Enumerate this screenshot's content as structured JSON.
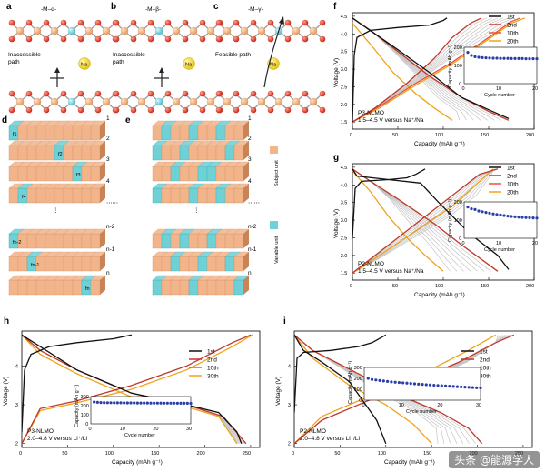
{
  "panels": {
    "a": {
      "letter": "a",
      "title": "-M–α-",
      "path_text": "Inaccessible\npath",
      "ion": "Na"
    },
    "b": {
      "letter": "b",
      "title": "-M–β-",
      "path_text": "Inaccessible\npath",
      "ion": "Na"
    },
    "c": {
      "letter": "c",
      "title": "-M–γ-",
      "path_text": "Feasible path",
      "ion": "Na"
    },
    "d": {
      "letter": "d",
      "row_labels": [
        "1",
        "2",
        "3",
        "4",
        "⋯⋯",
        "n-2",
        "n-1",
        "n"
      ],
      "f_labels": [
        "f1",
        "f2",
        "f3",
        "f4",
        "fn-2",
        "fn-1",
        "fn"
      ]
    },
    "e": {
      "letter": "e",
      "row_labels": [
        "1",
        "2",
        "3",
        "4",
        "⋯⋯",
        "n-2",
        "n-1",
        "n"
      ]
    },
    "legend_de": {
      "subject": "Subject unit",
      "variable": "Variable unit"
    }
  },
  "colors": {
    "first": "#111111",
    "second": "#c0392b",
    "tenth": "#e8543a",
    "twentieth": "#f0a21a",
    "subject": "#f2b48a",
    "variable": "#6fd0d6",
    "inset_marker": "#2a3ea8",
    "gray_curve": "#c4c4c4"
  },
  "chart_data": [
    {
      "panel": "f",
      "type": "line",
      "title": "",
      "label_line1": "P3-NLMO",
      "label_line2": "1.5–4.5 V versus Na⁺/Na",
      "xlabel": "Capacity (mAh g⁻¹)",
      "ylabel": "Voltage (V)",
      "xlim": [
        0,
        200
      ],
      "ylim": [
        1.3,
        4.6
      ],
      "xticks": [
        "0",
        "50",
        "100",
        "150",
        "200"
      ],
      "yticks": [
        "1.5",
        "2.0",
        "2.5",
        "3.0",
        "3.5",
        "4.0",
        "4.5"
      ],
      "legend": [
        "1st",
        "2nd",
        "10th",
        "20th"
      ],
      "series": [
        {
          "name": "1st charge",
          "x": [
            0,
            2,
            5,
            20,
            50,
            85,
            100,
            104
          ],
          "y": [
            1.5,
            3.4,
            3.9,
            4.1,
            4.18,
            4.25,
            4.38,
            4.45
          ]
        },
        {
          "name": "1st discharge",
          "x": [
            0,
            8,
            25,
            50,
            85,
            120,
            150,
            172
          ],
          "y": [
            4.45,
            4.3,
            4.0,
            3.55,
            2.9,
            2.2,
            1.85,
            1.6
          ]
        },
        {
          "name": "2nd charge",
          "x": [
            0,
            25,
            60,
            90,
            110,
            130,
            142
          ],
          "y": [
            1.5,
            1.9,
            2.6,
            3.3,
            3.9,
            4.3,
            4.45
          ]
        },
        {
          "name": "2nd discharge",
          "x": [
            0,
            20,
            50,
            85,
            120,
            150,
            172
          ],
          "y": [
            4.45,
            4.1,
            3.5,
            2.8,
            2.2,
            1.8,
            1.55
          ]
        },
        {
          "name": "10th charge",
          "x": [
            0,
            30,
            70,
            110,
            150,
            175,
            185
          ],
          "y": [
            1.5,
            1.95,
            2.6,
            3.2,
            3.9,
            4.35,
            4.45
          ]
        },
        {
          "name": "20th charge",
          "x": [
            0,
            30,
            70,
            110,
            150,
            175,
            190
          ],
          "y": [
            1.5,
            1.9,
            2.55,
            3.15,
            3.85,
            4.3,
            4.45
          ]
        },
        {
          "name": "20th discharge",
          "x": [
            0,
            20,
            45,
            70,
            90,
            110
          ],
          "y": [
            4.3,
            3.7,
            2.9,
            2.3,
            1.9,
            1.55
          ]
        }
      ],
      "inset": {
        "xlabel": "Cycle number",
        "ylabel": "Capacity (mAh g⁻¹)",
        "xlim": [
          0,
          20
        ],
        "ylim": [
          0,
          200
        ],
        "xticks": [
          "0",
          "10",
          "20"
        ],
        "yticks": [
          "0",
          "100",
          "200"
        ],
        "cycles": [
          1,
          2,
          3,
          4,
          5,
          6,
          7,
          8,
          9,
          10,
          11,
          12,
          13,
          14,
          15,
          16,
          17,
          18,
          19,
          20
        ],
        "capacity": [
          172,
          155,
          148,
          145,
          143,
          142,
          141,
          140,
          140,
          139,
          139,
          139,
          138,
          138,
          138,
          138,
          137,
          137,
          137,
          137
        ]
      }
    },
    {
      "panel": "g",
      "type": "line",
      "label_line1": "P2-NLMO",
      "label_line2": "1.5–4.5 V versus Na⁺/Na",
      "xlabel": "Capacity (mAh g⁻¹)",
      "ylabel": "Voltage (V)",
      "xlim": [
        0,
        200
      ],
      "ylim": [
        1.3,
        4.6
      ],
      "xticks": [
        "0",
        "50",
        "100",
        "150",
        "200"
      ],
      "yticks": [
        "1.5",
        "2.0",
        "2.5",
        "3.0",
        "3.5",
        "4.0",
        "4.5"
      ],
      "legend": [
        "1st",
        "2nd",
        "10th",
        "20th"
      ],
      "series": [
        {
          "name": "1st charge",
          "x": [
            0,
            3,
            10,
            40,
            60,
            70,
            80
          ],
          "y": [
            2.5,
            3.9,
            4.1,
            4.15,
            4.2,
            4.3,
            4.45
          ]
        },
        {
          "name": "1st discharge",
          "x": [
            0,
            5,
            40,
            75,
            95,
            130,
            160,
            172
          ],
          "y": [
            4.45,
            4.25,
            4.15,
            4.05,
            3.5,
            2.6,
            2.0,
            1.6
          ]
        },
        {
          "name": "2nd charge",
          "x": [
            0,
            20,
            50,
            80,
            110,
            140,
            160
          ],
          "y": [
            1.5,
            1.9,
            2.5,
            3.1,
            3.7,
            4.3,
            4.45
          ]
        },
        {
          "name": "2nd discharge",
          "x": [
            0,
            20,
            50,
            90,
            120,
            160
          ],
          "y": [
            4.45,
            4.1,
            3.6,
            2.9,
            2.3,
            1.55
          ]
        },
        {
          "name": "20th charge",
          "x": [
            0,
            30,
            70,
            110,
            140,
            155
          ],
          "y": [
            1.5,
            2.0,
            2.7,
            3.4,
            4.1,
            4.45
          ]
        },
        {
          "name": "20th discharge",
          "x": [
            0,
            20,
            40,
            60,
            80,
            100
          ],
          "y": [
            4.4,
            3.8,
            3.1,
            2.5,
            2.0,
            1.55
          ]
        }
      ],
      "inset": {
        "xlabel": "Cycle number",
        "ylabel": "Capacity (mAh g⁻¹)",
        "xlim": [
          0,
          20
        ],
        "ylim": [
          0,
          200
        ],
        "xticks": [
          "0",
          "10",
          "20"
        ],
        "yticks": [
          "0",
          "100",
          "200"
        ],
        "cycles": [
          1,
          2,
          3,
          4,
          5,
          6,
          7,
          8,
          9,
          10,
          11,
          12,
          13,
          14,
          15,
          16,
          17,
          18,
          19,
          20
        ],
        "capacity": [
          172,
          162,
          158,
          150,
          146,
          142,
          138,
          134,
          131,
          128,
          125,
          122,
          120,
          118,
          116,
          115,
          114,
          113,
          112,
          111
        ]
      }
    },
    {
      "panel": "h",
      "type": "line",
      "label_line1": "P3-NLMO",
      "label_line2": "2.0–4.8 V versus Li⁺/Li",
      "xlabel": "Capacity (mAh g⁻¹)",
      "ylabel": "Voltage (V)",
      "xlim": [
        0,
        260
      ],
      "ylim": [
        1.9,
        4.9
      ],
      "xticks": [
        "0",
        "50",
        "100",
        "150",
        "200",
        "250"
      ],
      "yticks": [
        "2",
        "3",
        "4"
      ],
      "legend": [
        "1st",
        "2nd",
        "10th",
        "30th"
      ],
      "series": [
        {
          "name": "1st charge",
          "x": [
            0,
            3,
            10,
            30,
            60,
            100,
            120
          ],
          "y": [
            2.3,
            3.9,
            4.3,
            4.5,
            4.6,
            4.7,
            4.8
          ]
        },
        {
          "name": "1st discharge",
          "x": [
            0,
            20,
            60,
            120,
            180,
            215,
            235,
            240
          ],
          "y": [
            4.8,
            4.5,
            3.9,
            3.3,
            3.0,
            2.8,
            2.3,
            2.0
          ]
        },
        {
          "name": "2nd charge",
          "x": [
            0,
            20,
            60,
            120,
            180,
            230,
            250
          ],
          "y": [
            2.0,
            2.9,
            3.1,
            3.5,
            4.0,
            4.6,
            4.8
          ]
        },
        {
          "name": "2nd discharge",
          "x": [
            0,
            20,
            60,
            120,
            180,
            220,
            245
          ],
          "y": [
            4.8,
            4.4,
            3.9,
            3.3,
            3.0,
            2.7,
            2.0
          ]
        },
        {
          "name": "30th charge",
          "x": [
            0,
            20,
            60,
            120,
            180,
            230,
            252
          ],
          "y": [
            2.0,
            2.85,
            3.05,
            3.4,
            3.9,
            4.5,
            4.8
          ]
        },
        {
          "name": "30th discharge",
          "x": [
            0,
            20,
            60,
            120,
            180,
            215,
            235
          ],
          "y": [
            4.8,
            4.3,
            3.8,
            3.2,
            2.95,
            2.7,
            2.0
          ]
        }
      ],
      "inset": {
        "xlabel": "Cycle number",
        "ylabel": "Capacity (mAh g⁻¹)",
        "xlim": [
          0,
          30
        ],
        "ylim": [
          0,
          300
        ],
        "xticks": [
          "0",
          "10",
          "20",
          "30"
        ],
        "yticks": [
          "0",
          "100",
          "200",
          "300"
        ],
        "cycles": [
          1,
          2,
          3,
          4,
          5,
          6,
          7,
          8,
          9,
          10,
          11,
          12,
          13,
          14,
          15,
          16,
          17,
          18,
          19,
          20,
          21,
          22,
          23,
          24,
          25,
          26,
          27,
          28,
          29,
          30
        ],
        "capacity": [
          240,
          236,
          234,
          233,
          232,
          232,
          231,
          231,
          231,
          230,
          230,
          230,
          230,
          229,
          229,
          229,
          229,
          228,
          228,
          228,
          228,
          227,
          227,
          227,
          227,
          226,
          226,
          226,
          226,
          225
        ]
      }
    },
    {
      "panel": "i",
      "type": "line",
      "label_line1": "P2-NLMO",
      "label_line2": "2.0–4.8 V versus Li⁺/Li",
      "xlabel": "Capacity (mAh g⁻¹)",
      "ylabel": "Voltage (V)",
      "xlim": [
        0,
        260
      ],
      "ylim": [
        1.9,
        4.9
      ],
      "xticks": [
        "0",
        "50",
        "100",
        "150",
        "200",
        "250"
      ],
      "yticks": [
        "2",
        "3",
        "4"
      ],
      "legend": [
        "1st",
        "2nd",
        "10th",
        "30th"
      ],
      "series": [
        {
          "name": "1st charge",
          "x": [
            0,
            3,
            10,
            40,
            70,
            85,
            100
          ],
          "y": [
            2.8,
            4.2,
            4.35,
            4.4,
            4.5,
            4.6,
            4.8
          ]
        },
        {
          "name": "1st discharge",
          "x": [
            0,
            10,
            30,
            60,
            90,
            100
          ],
          "y": [
            4.8,
            4.4,
            4.1,
            3.6,
            2.6,
            2.0
          ]
        },
        {
          "name": "2nd charge",
          "x": [
            0,
            30,
            80,
            130,
            180,
            220,
            240
          ],
          "y": [
            2.0,
            2.6,
            3.1,
            3.6,
            4.1,
            4.6,
            4.8
          ]
        },
        {
          "name": "2nd discharge",
          "x": [
            0,
            20,
            70,
            120,
            160,
            190,
            205
          ],
          "y": [
            4.8,
            4.4,
            3.8,
            3.2,
            2.8,
            2.4,
            2.0
          ]
        },
        {
          "name": "30th charge",
          "x": [
            0,
            30,
            80,
            140,
            190,
            220
          ],
          "y": [
            2.0,
            2.7,
            3.2,
            3.8,
            4.4,
            4.8
          ]
        },
        {
          "name": "30th discharge",
          "x": [
            0,
            20,
            60,
            100,
            130,
            150
          ],
          "y": [
            4.8,
            4.2,
            3.5,
            3.0,
            2.5,
            2.0
          ]
        }
      ],
      "inset": {
        "xlabel": "Cycle number",
        "ylabel": "Capacity (mAh g⁻¹)",
        "xlim": [
          0,
          30
        ],
        "ylim": [
          0,
          300
        ],
        "xticks": [
          "0",
          "10",
          "20",
          "30"
        ],
        "yticks": [
          "0",
          "100",
          "200",
          "300"
        ],
        "cycles": [
          1,
          2,
          3,
          4,
          5,
          6,
          7,
          8,
          9,
          10,
          11,
          12,
          13,
          14,
          15,
          16,
          17,
          18,
          19,
          20,
          21,
          22,
          23,
          24,
          25,
          26,
          27,
          28,
          29,
          30
        ],
        "capacity": [
          200,
          190,
          185,
          180,
          176,
          172,
          168,
          165,
          162,
          159,
          156,
          153,
          150,
          147,
          145,
          142,
          140,
          137,
          135,
          132,
          130,
          128,
          126,
          124,
          122,
          120,
          118,
          116,
          114,
          112
        ]
      }
    }
  ],
  "watermark": "头条 @能源学人"
}
